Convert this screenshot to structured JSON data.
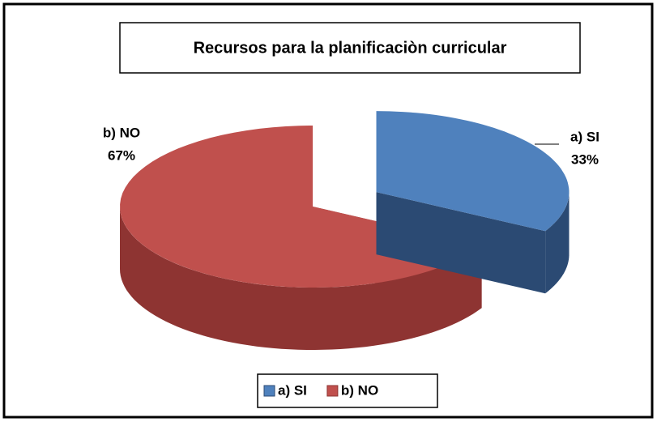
{
  "chart_data": {
    "type": "pie3d",
    "title": "Recursos para la planificaciòn curricular",
    "categories": [
      "a) SI",
      "b) NO"
    ],
    "values": [
      33,
      67
    ],
    "value_labels": [
      "33%",
      "67%"
    ],
    "colors": [
      "#4f81bd",
      "#c0504d"
    ],
    "side_colors": [
      "#2b4a73",
      "#8e3432"
    ],
    "explode": [
      1,
      0
    ],
    "legend": "bottom"
  }
}
